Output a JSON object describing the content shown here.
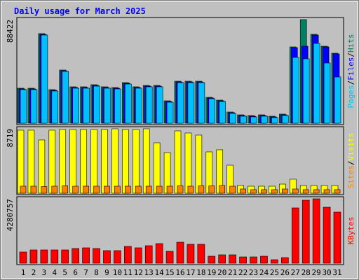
{
  "chart_data": {
    "type": "bar",
    "title": "Daily usage for March 2025",
    "categories": [
      "1",
      "2",
      "3",
      "4",
      "5",
      "6",
      "7",
      "8",
      "9",
      "10",
      "11",
      "12",
      "13",
      "14",
      "15",
      "16",
      "17",
      "18",
      "19",
      "20",
      "21",
      "22",
      "23",
      "24",
      "25",
      "26",
      "27",
      "28",
      "29",
      "30",
      "31"
    ],
    "category_colors": [
      "#008040",
      "#008040",
      "#000080",
      "#000080",
      "#000080",
      "#000080",
      "#000080",
      "#008040",
      "#008040",
      "#000080",
      "#000080",
      "#000080",
      "#000080",
      "#000080",
      "#008040",
      "#008040",
      "#000080",
      "#000080",
      "#000080",
      "#000080",
      "#000080",
      "#008040",
      "#008040",
      "#000080",
      "#000080",
      "#000080",
      "#000080",
      "#000080",
      "#008040",
      "#008040",
      "#000080"
    ],
    "legend_separator": "/",
    "panels": [
      {
        "ylim": [
          0,
          88422
        ],
        "yticks": [
          88422
        ],
        "series": [
          {
            "name": "Hits",
            "color": "#008060",
            "values": [
              29870,
              29870,
              76470,
              28680,
              45400,
              31070,
              31070,
              32860,
              31070,
              30470,
              34650,
              31070,
              32260,
              32260,
              19120,
              35840,
              35840,
              35840,
              22100,
              19710,
              9560,
              7170,
              6570,
              7170,
              5970,
              7770,
              65120,
              88422,
              75870,
              65710,
              59740
            ]
          },
          {
            "name": "Files",
            "color": "#0000ff",
            "values": [
              29270,
              29270,
              75870,
              28080,
              44800,
              30470,
              30470,
              32260,
              30470,
              29870,
              34050,
              30470,
              31660,
              31660,
              18520,
              35240,
              35240,
              35240,
              21510,
              19120,
              8960,
              6570,
              5970,
              6570,
              5380,
              7170,
              64520,
              65710,
              75270,
              65120,
              59140
            ]
          },
          {
            "name": "Pages",
            "color": "#00c0ff",
            "values": [
              28680,
              28680,
              75270,
              27480,
              44200,
              29870,
              29870,
              31660,
              29870,
              29270,
              33450,
              29870,
              31070,
              31070,
              17920,
              34650,
              34650,
              34650,
              20910,
              18520,
              8360,
              5970,
              5380,
              5970,
              4780,
              6570,
              56160,
              54960,
              68100,
              51380,
              39430
            ]
          }
        ]
      },
      {
        "ylim": [
          0,
          8719
        ],
        "yticks": [
          8719
        ],
        "series": [
          {
            "name": "Visits",
            "color": "#ffff00",
            "values": [
              8532,
              8532,
              7205,
              8532,
              8627,
              8627,
              8627,
              8627,
              8627,
              8719,
              8627,
              8627,
              8719,
              6826,
              5498,
              8437,
              8153,
              7868,
              5593,
              5878,
              3792,
              1043,
              948,
              948,
              948,
              1232,
              1896,
              1043,
              1043,
              1043,
              1043
            ]
          },
          {
            "name": "Sites",
            "color": "#ff8000",
            "values": [
              950,
              950,
              900,
              950,
              1000,
              950,
              950,
              950,
              950,
              950,
              950,
              950,
              950,
              950,
              950,
              1000,
              950,
              1000,
              1000,
              1050,
              950,
              570,
              480,
              480,
              480,
              570,
              570,
              480,
              480,
              480,
              480
            ]
          }
        ]
      },
      {
        "ylim": [
          0,
          4280757
        ],
        "yticks": [
          4280757
        ],
        "series": [
          {
            "name": "KBytes",
            "color": "#ff0000",
            "values": [
              744480,
              884070,
              884070,
              884070,
              884070,
              977130,
              1023660,
              977130,
              837540,
              837540,
              1116720,
              1023660,
              1163250,
              1302840,
              791010,
              1395900,
              1256310,
              1256310,
              465300,
              558360,
              558360,
              418770,
              418770,
              465300,
              232650,
              372240,
              3675870,
              4187700,
              4280757,
              3722400,
              3396690
            ]
          }
        ]
      }
    ]
  }
}
